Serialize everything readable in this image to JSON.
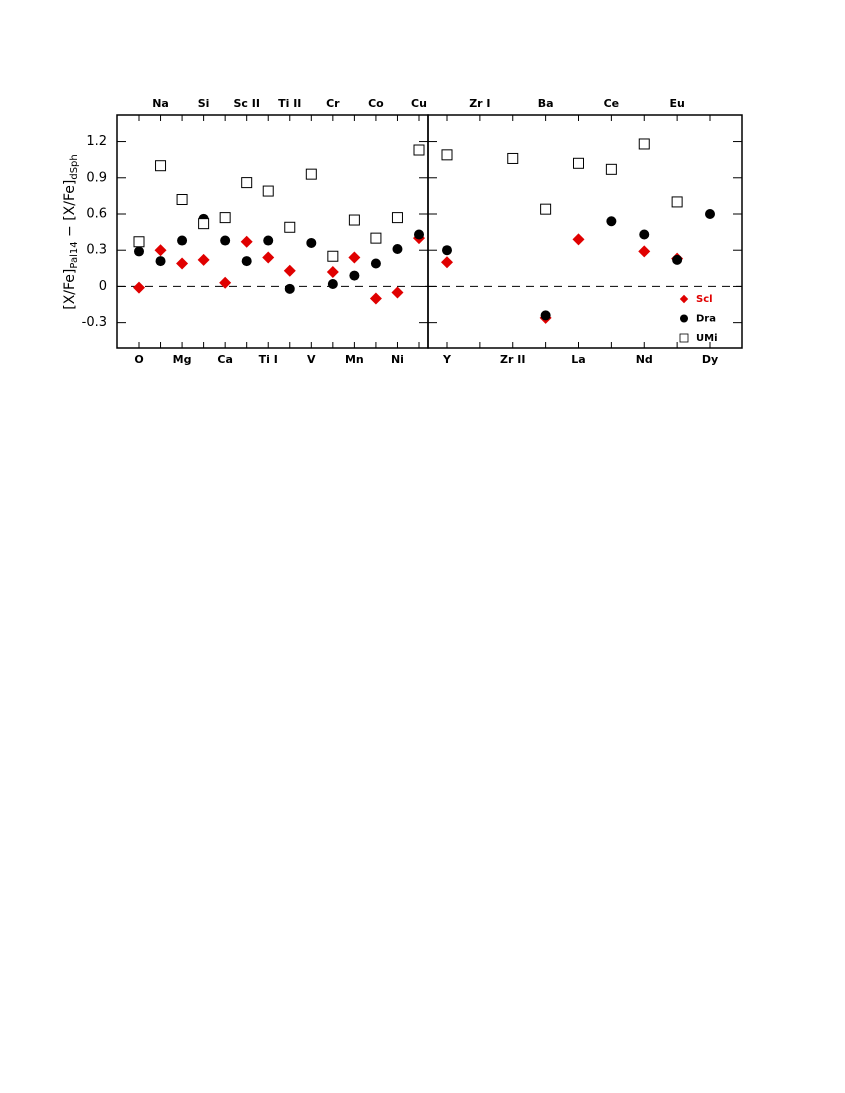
{
  "chart_data": [
    {
      "type": "scatter",
      "ylabel": {
        "part1": "[X/Fe]",
        "sub1": "Pal14",
        "part2": " − [X/Fe]",
        "sub2": "dSph"
      },
      "categories": [
        "O",
        "Na",
        "Mg",
        "Si",
        "Ca",
        "Sc II",
        "Ti I",
        "Ti II",
        "V",
        "Cr",
        "Mn",
        "Co",
        "Ni",
        "Cu"
      ],
      "ylim": [
        -0.51,
        1.42
      ],
      "yticks": [
        -0.3,
        0,
        0.3,
        0.6,
        0.9,
        1.2
      ],
      "hline": 0,
      "series": [
        {
          "name": "Scl",
          "color": "#e00000",
          "marker": "diamond",
          "values": [
            -0.01,
            0.3,
            0.19,
            0.22,
            0.03,
            0.37,
            0.24,
            0.13,
            null,
            0.12,
            0.24,
            -0.1,
            -0.05,
            0.4
          ]
        },
        {
          "name": "Dra",
          "color": "#000000",
          "marker": "circle",
          "values": [
            0.29,
            0.21,
            0.38,
            0.56,
            0.38,
            0.21,
            0.38,
            -0.02,
            0.36,
            0.02,
            0.09,
            0.19,
            0.31,
            0.43
          ]
        },
        {
          "name": "UMi",
          "color": "#000000",
          "marker": "square",
          "values": [
            0.37,
            1.0,
            0.72,
            0.52,
            0.57,
            0.86,
            0.79,
            0.49,
            0.93,
            0.25,
            0.55,
            0.4,
            0.57,
            1.13
          ]
        }
      ]
    },
    {
      "type": "scatter",
      "categories": [
        "Y",
        "Zr I",
        "Zr II",
        "Ba",
        "La",
        "Ce",
        "Nd",
        "Eu",
        "Dy"
      ],
      "ylim": [
        -0.51,
        1.42
      ],
      "yticks": [
        -0.3,
        0,
        0.3,
        0.6,
        0.9,
        1.2
      ],
      "hline": 0,
      "legend": "lower right",
      "series": [
        {
          "name": "Scl",
          "color": "#e00000",
          "marker": "diamond",
          "values": [
            0.2,
            null,
            null,
            -0.26,
            0.39,
            null,
            0.29,
            0.23,
            null
          ]
        },
        {
          "name": "Dra",
          "color": "#000000",
          "marker": "circle",
          "values": [
            0.3,
            null,
            null,
            -0.24,
            null,
            0.54,
            0.43,
            0.22,
            0.6
          ]
        },
        {
          "name": "UMi",
          "color": "#000000",
          "marker": "square",
          "values": [
            1.09,
            null,
            1.06,
            0.64,
            1.02,
            0.97,
            1.18,
            0.7,
            null
          ]
        }
      ]
    }
  ]
}
